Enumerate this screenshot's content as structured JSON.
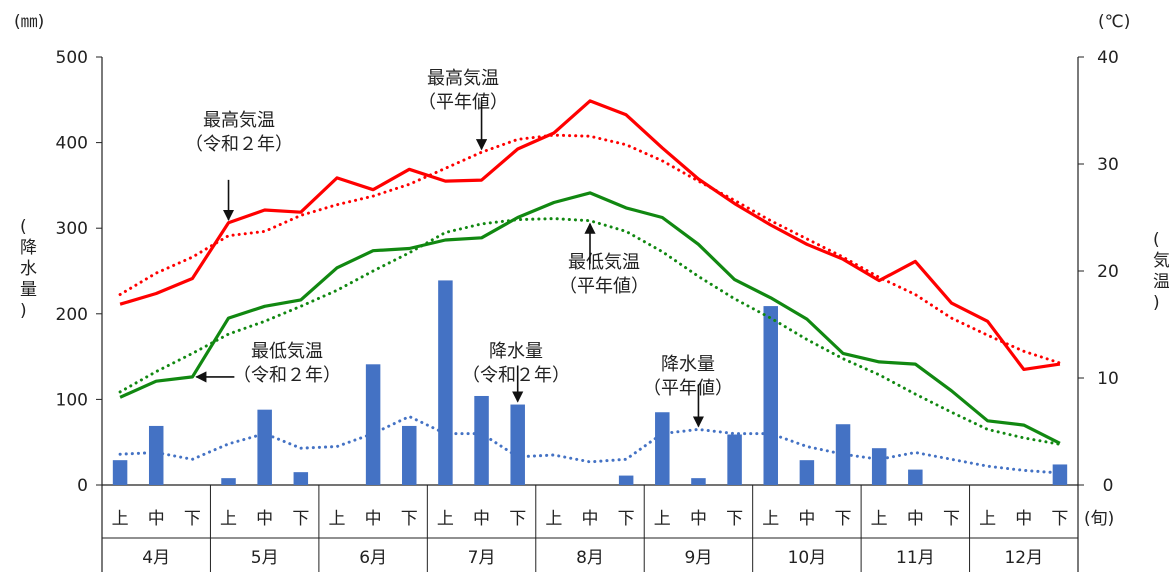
{
  "chart_data": {
    "type": "bar",
    "left_unit": "(㎜)",
    "right_unit": "(℃)",
    "ylabel_left": "(降水量)",
    "ylabel_right": "(気温)",
    "xunit": "(旬)",
    "left_ylim": [
      0,
      500
    ],
    "right_ylim": [
      0,
      40
    ],
    "left_ticks": [
      "0",
      "100",
      "200",
      "300",
      "400",
      "500"
    ],
    "right_ticks": [
      "0",
      "10",
      "20",
      "30",
      "40"
    ],
    "sub_categories": [
      "上",
      "中",
      "下"
    ],
    "months": [
      "4月",
      "5月",
      "6月",
      "7月",
      "8月",
      "9月",
      "10月",
      "11月",
      "12月"
    ],
    "series": [
      {
        "name": "降水量（令和２年）",
        "kind": "bar",
        "axis": "left",
        "color": "#4472C4",
        "values": [
          29,
          69,
          0,
          8,
          88,
          15,
          0,
          141,
          69,
          239,
          104,
          94,
          0,
          0,
          11,
          85,
          8,
          59,
          209,
          29,
          71,
          43,
          18,
          0,
          0,
          0,
          24
        ]
      },
      {
        "name": "降水量（平年値）",
        "kind": "dotted",
        "axis": "left",
        "color": "#4472C4",
        "values": [
          36,
          38,
          30,
          48,
          60,
          43,
          45,
          60,
          80,
          60,
          60,
          33,
          35,
          27,
          30,
          60,
          65,
          60,
          60,
          45,
          36,
          30,
          38,
          30,
          22,
          17,
          14
        ]
      },
      {
        "name": "最高気温（令和２年）",
        "kind": "line",
        "axis": "right",
        "color": "#FF0000",
        "values": [
          16.9,
          17.9,
          19.3,
          24.5,
          25.7,
          25.5,
          28.7,
          27.6,
          29.5,
          28.4,
          28.5,
          31.4,
          32.9,
          35.9,
          34.6,
          31.5,
          28.6,
          26.3,
          24.3,
          22.5,
          21.1,
          19.1,
          20.9,
          17.0,
          15.3,
          10.8,
          11.3
        ]
      },
      {
        "name": "最高気温（平年値）",
        "kind": "dotted",
        "axis": "right",
        "color": "#FF0000",
        "values": [
          17.8,
          19.8,
          21.3,
          23.3,
          23.7,
          25.2,
          26.2,
          27.0,
          28.1,
          29.6,
          31.1,
          32.3,
          32.7,
          32.6,
          31.8,
          30.3,
          28.4,
          26.6,
          24.7,
          23.0,
          21.3,
          19.4,
          17.8,
          15.6,
          14.0,
          12.5,
          11.4
        ]
      },
      {
        "name": "最低気温（令和２年）",
        "kind": "line",
        "axis": "right",
        "color": "#118811",
        "values": [
          8.2,
          9.7,
          10.1,
          15.6,
          16.7,
          17.3,
          20.3,
          21.9,
          22.1,
          22.9,
          23.1,
          25.0,
          26.4,
          27.3,
          25.9,
          25.0,
          22.5,
          19.2,
          17.5,
          15.5,
          12.3,
          11.5,
          11.3,
          8.8,
          6.0,
          5.6,
          3.9
        ]
      },
      {
        "name": "最低気温（平年値）",
        "kind": "dotted",
        "axis": "right",
        "color": "#118811",
        "values": [
          8.7,
          10.6,
          12.3,
          14.1,
          15.3,
          16.7,
          18.2,
          20.0,
          21.7,
          23.6,
          24.4,
          24.8,
          24.9,
          24.7,
          23.7,
          21.8,
          19.5,
          17.4,
          15.6,
          13.6,
          11.8,
          10.3,
          8.5,
          6.8,
          5.2,
          4.4,
          3.8
        ]
      }
    ],
    "annotations": [
      {
        "text": [
          "最高気温",
          "（令和２年）"
        ],
        "target_series": 2,
        "target_index": 3
      },
      {
        "text": [
          "最高気温",
          "（平年値）"
        ],
        "target_series": 3,
        "target_index": 10
      },
      {
        "text": [
          "最低気温",
          "（平年値）"
        ],
        "target_series": 5,
        "target_index": 13
      },
      {
        "text": [
          "最低気温",
          "（令和２年）"
        ],
        "target_series": 4,
        "target_index": 2
      },
      {
        "text": [
          "降水量",
          "（令和２年）"
        ],
        "target_series": 0,
        "target_index": 11
      },
      {
        "text": [
          "降水量",
          "（平年値）"
        ],
        "target_series": 1,
        "target_index": 16
      }
    ],
    "grid": false,
    "legend": "none"
  }
}
